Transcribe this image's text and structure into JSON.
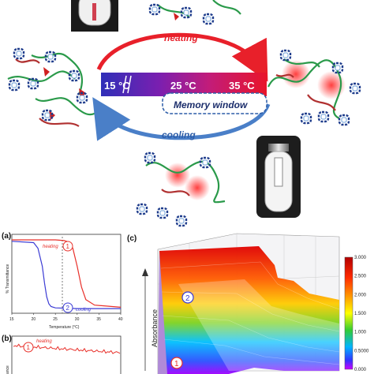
{
  "schematic": {
    "heating_label": "heating",
    "cooling_label": "cooling",
    "temp_low": "15 °C",
    "temp_mid": "25 °C",
    "temp_high": "35 °C",
    "memory_window": "Memory window"
  },
  "panel_a": {
    "letter": "(a)",
    "ylabel": "% Transmittance",
    "xlabel": "Temperature (°C)",
    "heating_label": "heating",
    "cooling_label": "cooling",
    "marker_heating": "1",
    "marker_cooling": "2",
    "xticks": [
      "15",
      "20",
      "25",
      "30",
      "35",
      "40"
    ],
    "colors": {
      "heating": "#e8302a",
      "cooling": "#3b3bd4"
    }
  },
  "panel_b": {
    "letter": "(b)",
    "heating_label": "heating",
    "marker": "1",
    "ylabel_fragment": "ance"
  },
  "panel_c": {
    "letter": "(c)",
    "ylabel": "Absorbance",
    "marker_top": "2",
    "marker_bottom": "1",
    "colorbar": {
      "ticks": [
        "3.000",
        "2.500",
        "2.000",
        "1.500",
        "1.000",
        "0.5000",
        "0.000"
      ],
      "range": [
        0,
        3
      ]
    }
  },
  "chart_data": [
    {
      "type": "line",
      "panel": "a",
      "xlabel": "Temperature (°C)",
      "ylabel": "% Transmittance",
      "xlim": [
        15,
        40
      ],
      "series": [
        {
          "name": "heating",
          "x": [
            15,
            20,
            25,
            27,
            28,
            29,
            30,
            31,
            32,
            34,
            40
          ],
          "y": [
            100,
            100,
            100,
            99,
            97,
            88,
            62,
            32,
            14,
            6,
            3
          ]
        },
        {
          "name": "cooling",
          "x": [
            15,
            20,
            21,
            22,
            22.5,
            23,
            23.5,
            24,
            25,
            30,
            40
          ],
          "y": [
            98,
            96,
            88,
            62,
            38,
            18,
            8,
            4,
            2,
            1,
            1
          ]
        }
      ]
    },
    {
      "type": "heatmap",
      "panel": "c",
      "ylabel": "Absorbance",
      "zlim": [
        0,
        3
      ]
    }
  ]
}
